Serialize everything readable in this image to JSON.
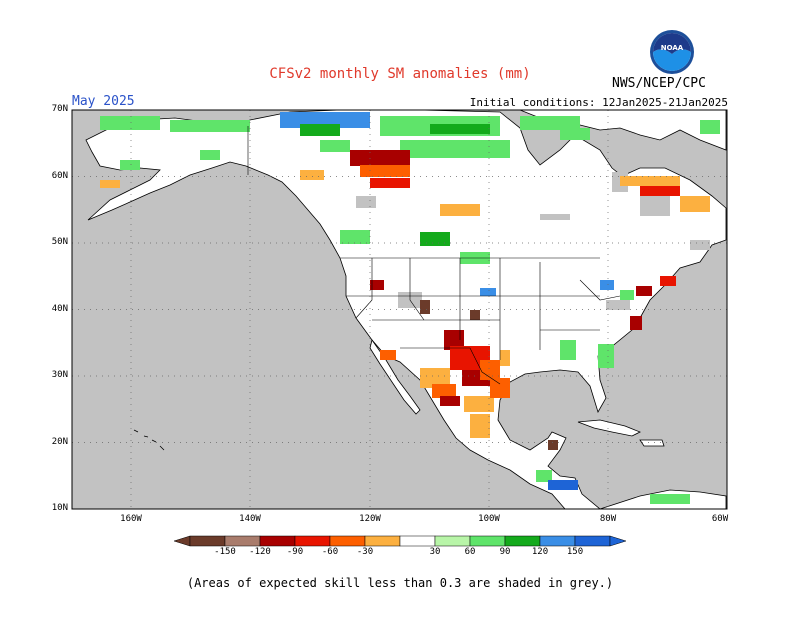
{
  "header": {
    "title": "CFSv2 monthly SM anomalies (mm)",
    "valid_month": "May 2025",
    "initial_conditions": "Initial conditions: 12Jan2025-21Jan2025",
    "agency": "NWS/NCEP/CPC",
    "logo_text": "NOAA"
  },
  "map": {
    "extent": {
      "lon_min": -170,
      "lon_max": -60,
      "lat_min": 10,
      "lat_max": 70
    },
    "lat_labels": [
      "70N",
      "60N",
      "50N",
      "40N",
      "30N",
      "20N",
      "10N"
    ],
    "lon_labels": [
      "160W",
      "140W",
      "120W",
      "100W",
      "80W",
      "60W"
    ],
    "colors": {
      "ocean": "#c2c2c2",
      "land": "#ffffff",
      "low_skill": "#c2c2c2",
      "border": "#000000"
    }
  },
  "colorbar": {
    "ticks": [
      "-150",
      "-120",
      "-90",
      "-60",
      "-30",
      "30",
      "60",
      "90",
      "120",
      "150"
    ],
    "colors": [
      "#6b3b2a",
      "#a97c6c",
      "#a80000",
      "#e81400",
      "#fd5f00",
      "#fcb040",
      "#ffffff",
      "#b8f5a8",
      "#5fe46a",
      "#14aa1c",
      "#3a8ee6",
      "#1e64d6"
    ]
  },
  "footnote": "(Areas of expected skill less than 0.3 are shaded in grey.)"
}
